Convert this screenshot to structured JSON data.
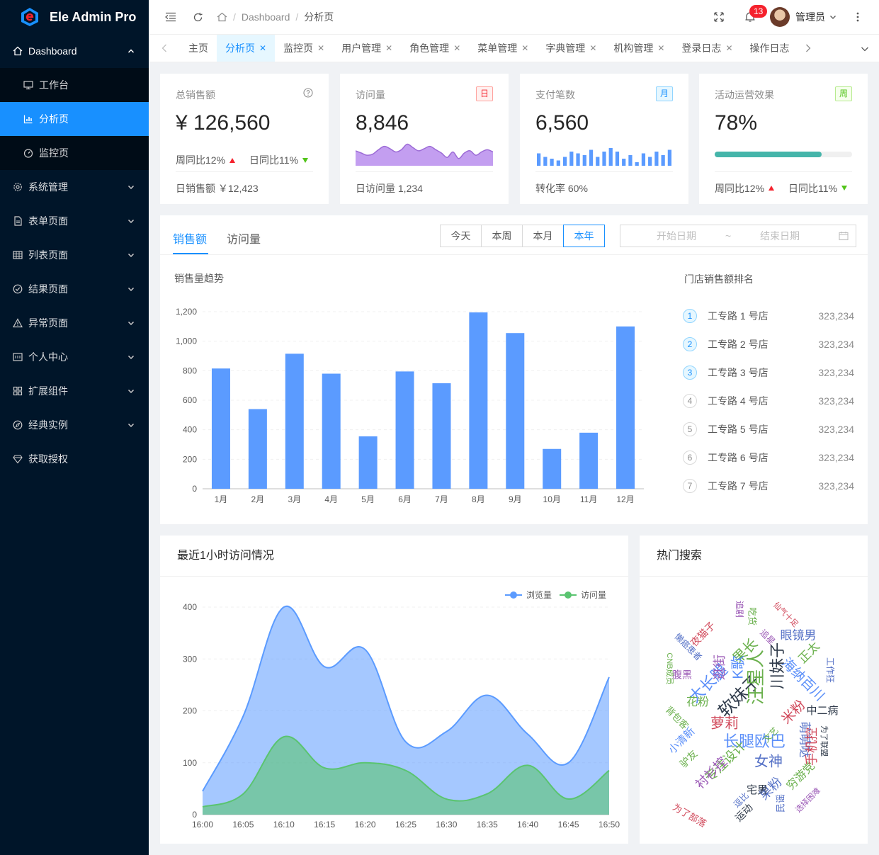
{
  "app": {
    "title": "Ele Admin Pro"
  },
  "sidebar": {
    "items": [
      {
        "label": "Dashboard",
        "icon": "home-icon"
      },
      {
        "label": "工作台",
        "icon": "monitor-icon"
      },
      {
        "label": "分析页",
        "icon": "bar-chart-icon"
      },
      {
        "label": "监控页",
        "icon": "dashboard-icon"
      },
      {
        "label": "系统管理",
        "icon": "gear-icon"
      },
      {
        "label": "表单页面",
        "icon": "file-icon"
      },
      {
        "label": "列表页面",
        "icon": "table-icon"
      },
      {
        "label": "结果页面",
        "icon": "check-circle-icon"
      },
      {
        "label": "异常页面",
        "icon": "warning-icon"
      },
      {
        "label": "个人中心",
        "icon": "user-card-icon"
      },
      {
        "label": "扩展组件",
        "icon": "components-icon"
      },
      {
        "label": "经典实例",
        "icon": "compass-icon"
      },
      {
        "label": "获取授权",
        "icon": "diamond-icon"
      }
    ]
  },
  "header": {
    "breadcrumb": [
      "Dashboard",
      "分析页"
    ],
    "notification_count": "13",
    "username": "管理员"
  },
  "tabs": [
    {
      "label": "主页"
    },
    {
      "label": "分析页"
    },
    {
      "label": "监控页"
    },
    {
      "label": "用户管理"
    },
    {
      "label": "角色管理"
    },
    {
      "label": "菜单管理"
    },
    {
      "label": "字典管理"
    },
    {
      "label": "机构管理"
    },
    {
      "label": "登录日志"
    },
    {
      "label": "操作日志"
    }
  ],
  "stats": {
    "sales": {
      "label": "总销售额",
      "value": "¥ 126,560",
      "week": "周同比12%",
      "day": "日同比11%",
      "footer": "日销售额 ￥12,423"
    },
    "visits": {
      "label": "访问量",
      "tag": "日",
      "value": "8,846",
      "footer": "日访问量 1,234"
    },
    "payments": {
      "label": "支付笔数",
      "tag": "月",
      "value": "6,560",
      "footer": "转化率 60%"
    },
    "campaign": {
      "label": "活动运营效果",
      "tag": "周",
      "value": "78%",
      "progress": 78,
      "week": "周同比12%",
      "day": "日同比11%"
    }
  },
  "sales_panel": {
    "tabs": [
      "销售额",
      "访问量"
    ],
    "periods": [
      "今天",
      "本周",
      "本月",
      "本年"
    ],
    "range_start": "开始日期",
    "range_sep": "~",
    "range_end": "结束日期",
    "chart_title": "销售量趋势",
    "ranking_title": "门店销售额排名",
    "ranking": [
      {
        "rank": "1",
        "name": "工专路 1 号店",
        "value": "323,234"
      },
      {
        "rank": "2",
        "name": "工专路 2 号店",
        "value": "323,234"
      },
      {
        "rank": "3",
        "name": "工专路 3 号店",
        "value": "323,234"
      },
      {
        "rank": "4",
        "name": "工专路 4 号店",
        "value": "323,234"
      },
      {
        "rank": "5",
        "name": "工专路 5 号店",
        "value": "323,234"
      },
      {
        "rank": "6",
        "name": "工专路 6 号店",
        "value": "323,234"
      },
      {
        "rank": "7",
        "name": "工专路 7 号店",
        "value": "323,234"
      }
    ]
  },
  "visit_panel": {
    "title": "最近1小时访问情况"
  },
  "hot_panel": {
    "title": "热门搜索"
  },
  "chart_data": [
    {
      "type": "bar",
      "title": "销售量趋势",
      "categories": [
        "1月",
        "2月",
        "3月",
        "4月",
        "5月",
        "6月",
        "7月",
        "8月",
        "9月",
        "10月",
        "11月",
        "12月"
      ],
      "values": [
        815,
        540,
        915,
        780,
        355,
        795,
        715,
        1195,
        1055,
        270,
        380,
        1100
      ],
      "ylim": [
        0,
        1200
      ],
      "yticks": [
        "0",
        "200",
        "400",
        "600",
        "800",
        "1,000",
        "1,200"
      ],
      "color": "#5b9bff"
    },
    {
      "type": "area",
      "title": "最近1小时访问情况",
      "x": [
        "16:00",
        "16:05",
        "16:10",
        "16:15",
        "16:20",
        "16:25",
        "16:30",
        "16:35",
        "16:40",
        "16:45",
        "16:50"
      ],
      "ylim": [
        0,
        400
      ],
      "yticks": [
        "0",
        "100",
        "200",
        "300",
        "400"
      ],
      "series": [
        {
          "name": "浏览量",
          "color": "#5b9bff",
          "values": [
            45,
            190,
            400,
            285,
            318,
            140,
            160,
            230,
            155,
            100,
            265
          ]
        },
        {
          "name": "访问量",
          "color": "#5ac470",
          "values": [
            15,
            40,
            150,
            90,
            100,
            85,
            30,
            40,
            95,
            30,
            85
          ]
        }
      ],
      "legend": "top-right"
    },
    {
      "type": "area",
      "title": "访问量",
      "values": [
        22,
        18,
        14,
        16,
        24,
        30,
        26,
        20,
        24,
        34,
        28,
        22,
        26,
        30,
        24,
        18,
        10,
        20,
        8,
        18,
        22,
        14,
        20,
        24,
        20
      ]
    },
    {
      "type": "bar",
      "title": "支付笔数",
      "values": [
        7,
        5,
        4,
        3,
        5,
        8,
        7,
        6,
        9,
        5,
        8,
        10,
        8,
        4,
        6,
        2,
        7,
        5,
        8,
        6,
        9
      ]
    }
  ],
  "word_cloud": [
    {
      "t": "长腿欧巴",
      "c": "#5b8ff9",
      "r": 0
    },
    {
      "t": "女神",
      "c": "#5470c6",
      "r": 0
    },
    {
      "t": "萝莉",
      "c": "#d1495b",
      "r": 0
    },
    {
      "t": "软妹子",
      "c": "#2f3a4a",
      "r": -45
    },
    {
      "t": "大长腿",
      "c": "#5b8ff9",
      "r": -45
    },
    {
      "t": "汪星人",
      "c": "#6ab04c",
      "r": -90
    },
    {
      "t": "川妹子",
      "c": "#2f3a4a",
      "r": -90
    },
    {
      "t": "萌萌哒",
      "c": "#5470c6",
      "r": 90
    },
    {
      "t": "果长",
      "c": "#6ab04c",
      "r": -45
    },
    {
      "t": "海纳百川",
      "c": "#5b8ff9",
      "r": 45
    },
    {
      "t": "眼镜男",
      "c": "#5470c6",
      "r": 0
    },
    {
      "t": "正太",
      "c": "#6ab04c",
      "r": -45
    },
    {
      "t": "花粉",
      "c": "#6ab04c",
      "r": 0
    },
    {
      "t": "逛街",
      "c": "#9b59b6",
      "r": -90
    },
    {
      "t": "K歌",
      "c": "#5b8ff9",
      "r": -90
    },
    {
      "t": "米粉",
      "c": "#d1495b",
      "r": -45
    },
    {
      "t": "专注设计",
      "c": "#6ab04c",
      "r": -45
    },
    {
      "t": "衬衫控",
      "c": "#9b59b6",
      "r": -45
    },
    {
      "t": "果粉",
      "c": "#5470c6",
      "r": -45
    },
    {
      "t": "宅男",
      "c": "#2f3a4a",
      "r": 0
    },
    {
      "t": "穷游党",
      "c": "#6ab04c",
      "r": -45
    },
    {
      "t": "小清新",
      "c": "#5b8ff9",
      "r": -45
    },
    {
      "t": "驴友",
      "c": "#6ab04c",
      "r": -45
    },
    {
      "t": "手机控",
      "c": "#d1495b",
      "r": -90
    },
    {
      "t": "背包客",
      "c": "#6ab04c",
      "r": 45
    },
    {
      "t": "中二病",
      "c": "#2f3a4a",
      "r": 0
    },
    {
      "t": "为了部落",
      "c": "#d1495b",
      "r": 30
    },
    {
      "t": "夜猫子",
      "c": "#d1495b",
      "r": -45
    },
    {
      "t": "腹黑",
      "c": "#9b59b6",
      "r": 0
    },
    {
      "t": "吃货",
      "c": "#6ab04c",
      "r": 90
    },
    {
      "t": "民谣",
      "c": "#5470c6",
      "r": -90
    },
    {
      "t": "运动",
      "c": "#2f3a4a",
      "r": -45
    },
    {
      "t": "追剧",
      "c": "#9b59b6",
      "r": 90
    },
    {
      "t": "懒癌患者",
      "c": "#5470c6",
      "r": 45
    },
    {
      "t": "CNB成员",
      "c": "#6ab04c",
      "r": 90
    },
    {
      "t": "逗比",
      "c": "#5470c6",
      "r": -45
    },
    {
      "t": "文艺",
      "c": "#6ab04c",
      "r": -45
    },
    {
      "t": "工作狂",
      "c": "#5470c6",
      "r": 90
    },
    {
      "t": "追星",
      "c": "#9b59b6",
      "r": 45
    },
    {
      "t": "选择困难",
      "c": "#9b59b6",
      "r": -45
    },
    {
      "t": "仙气十足",
      "c": "#d1495b",
      "r": 45
    },
    {
      "t": "为了联盟",
      "c": "#2f3a4a",
      "r": 90
    }
  ]
}
